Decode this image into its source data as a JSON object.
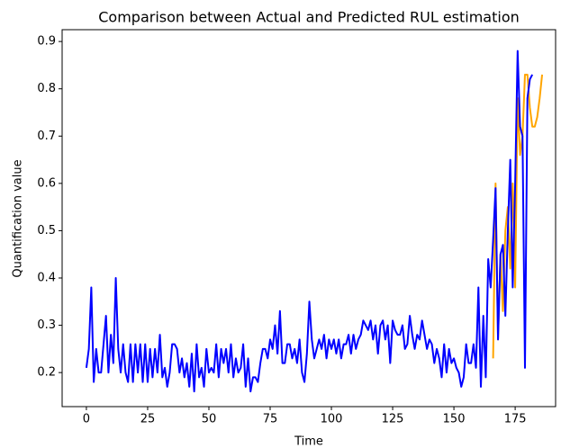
{
  "chart_data": {
    "type": "line",
    "title": "Comparison between Actual and Predicted RUL estimation",
    "xlabel": "Time",
    "ylabel": "Quantification value",
    "xlim": [
      -9.9,
      191.5
    ],
    "ylim": [
      0.128,
      0.925
    ],
    "xticks": [
      0,
      25,
      50,
      75,
      100,
      125,
      150,
      175
    ],
    "yticks": [
      0.2,
      0.3,
      0.4,
      0.5,
      0.6,
      0.7,
      0.8,
      0.9
    ],
    "series": [
      {
        "color": "#ffa500",
        "x": [
          166,
          167,
          168,
          169,
          170,
          171,
          172,
          173,
          174,
          175,
          176,
          177,
          178,
          179,
          180,
          181,
          182,
          183,
          184,
          185,
          186
        ],
        "values": [
          0.23,
          0.6,
          0.27,
          0.45,
          0.33,
          0.5,
          0.55,
          0.42,
          0.6,
          0.38,
          0.78,
          0.66,
          0.7,
          0.83,
          0.83,
          0.76,
          0.72,
          0.72,
          0.74,
          0.78,
          0.83
        ]
      },
      {
        "color": "#0000ff",
        "x": [
          0,
          1,
          2,
          3,
          4,
          5,
          6,
          7,
          8,
          9,
          10,
          11,
          12,
          13,
          14,
          15,
          16,
          17,
          18,
          19,
          20,
          21,
          22,
          23,
          24,
          25,
          26,
          27,
          28,
          29,
          30,
          31,
          32,
          33,
          34,
          35,
          36,
          37,
          38,
          39,
          40,
          41,
          42,
          43,
          44,
          45,
          46,
          47,
          48,
          49,
          50,
          51,
          52,
          53,
          54,
          55,
          56,
          57,
          58,
          59,
          60,
          61,
          62,
          63,
          64,
          65,
          66,
          67,
          68,
          69,
          70,
          71,
          72,
          73,
          74,
          75,
          76,
          77,
          78,
          79,
          80,
          81,
          82,
          83,
          84,
          85,
          86,
          87,
          88,
          89,
          90,
          91,
          92,
          93,
          94,
          95,
          96,
          97,
          98,
          99,
          100,
          101,
          102,
          103,
          104,
          105,
          106,
          107,
          108,
          109,
          110,
          111,
          112,
          113,
          114,
          115,
          116,
          117,
          118,
          119,
          120,
          121,
          122,
          123,
          124,
          125,
          126,
          127,
          128,
          129,
          130,
          131,
          132,
          133,
          134,
          135,
          136,
          137,
          138,
          139,
          140,
          141,
          142,
          143,
          144,
          145,
          146,
          147,
          148,
          149,
          150,
          151,
          152,
          153,
          154,
          155,
          156,
          157,
          158,
          159,
          160,
          161,
          162,
          163,
          164,
          165,
          166,
          167,
          168,
          169,
          170,
          171,
          172,
          173,
          174,
          175,
          176,
          177,
          178,
          179,
          180,
          181,
          182
        ],
        "values": [
          0.21,
          0.25,
          0.38,
          0.18,
          0.25,
          0.2,
          0.2,
          0.26,
          0.32,
          0.2,
          0.28,
          0.22,
          0.4,
          0.25,
          0.2,
          0.26,
          0.2,
          0.18,
          0.26,
          0.18,
          0.26,
          0.2,
          0.26,
          0.18,
          0.26,
          0.18,
          0.25,
          0.19,
          0.25,
          0.2,
          0.28,
          0.19,
          0.21,
          0.17,
          0.2,
          0.26,
          0.26,
          0.25,
          0.2,
          0.23,
          0.19,
          0.22,
          0.17,
          0.24,
          0.16,
          0.26,
          0.19,
          0.21,
          0.17,
          0.25,
          0.2,
          0.21,
          0.2,
          0.26,
          0.19,
          0.25,
          0.22,
          0.25,
          0.2,
          0.26,
          0.19,
          0.23,
          0.2,
          0.21,
          0.26,
          0.17,
          0.23,
          0.16,
          0.19,
          0.19,
          0.18,
          0.22,
          0.25,
          0.25,
          0.23,
          0.27,
          0.25,
          0.3,
          0.24,
          0.33,
          0.22,
          0.22,
          0.26,
          0.26,
          0.23,
          0.25,
          0.22,
          0.27,
          0.2,
          0.18,
          0.24,
          0.35,
          0.27,
          0.23,
          0.25,
          0.27,
          0.25,
          0.28,
          0.23,
          0.27,
          0.25,
          0.27,
          0.24,
          0.27,
          0.23,
          0.26,
          0.26,
          0.28,
          0.24,
          0.28,
          0.25,
          0.27,
          0.28,
          0.31,
          0.3,
          0.29,
          0.31,
          0.27,
          0.3,
          0.24,
          0.3,
          0.31,
          0.27,
          0.3,
          0.22,
          0.31,
          0.29,
          0.28,
          0.28,
          0.3,
          0.25,
          0.26,
          0.32,
          0.28,
          0.25,
          0.28,
          0.27,
          0.31,
          0.28,
          0.25,
          0.27,
          0.26,
          0.22,
          0.25,
          0.23,
          0.19,
          0.26,
          0.2,
          0.25,
          0.22,
          0.23,
          0.21,
          0.2,
          0.17,
          0.19,
          0.26,
          0.22,
          0.22,
          0.26,
          0.21,
          0.38,
          0.17,
          0.32,
          0.19,
          0.44,
          0.38,
          0.48,
          0.59,
          0.27,
          0.45,
          0.47,
          0.32,
          0.5,
          0.65,
          0.38,
          0.6,
          0.88,
          0.72,
          0.7,
          0.21,
          0.78,
          0.82,
          0.83
        ]
      }
    ]
  }
}
